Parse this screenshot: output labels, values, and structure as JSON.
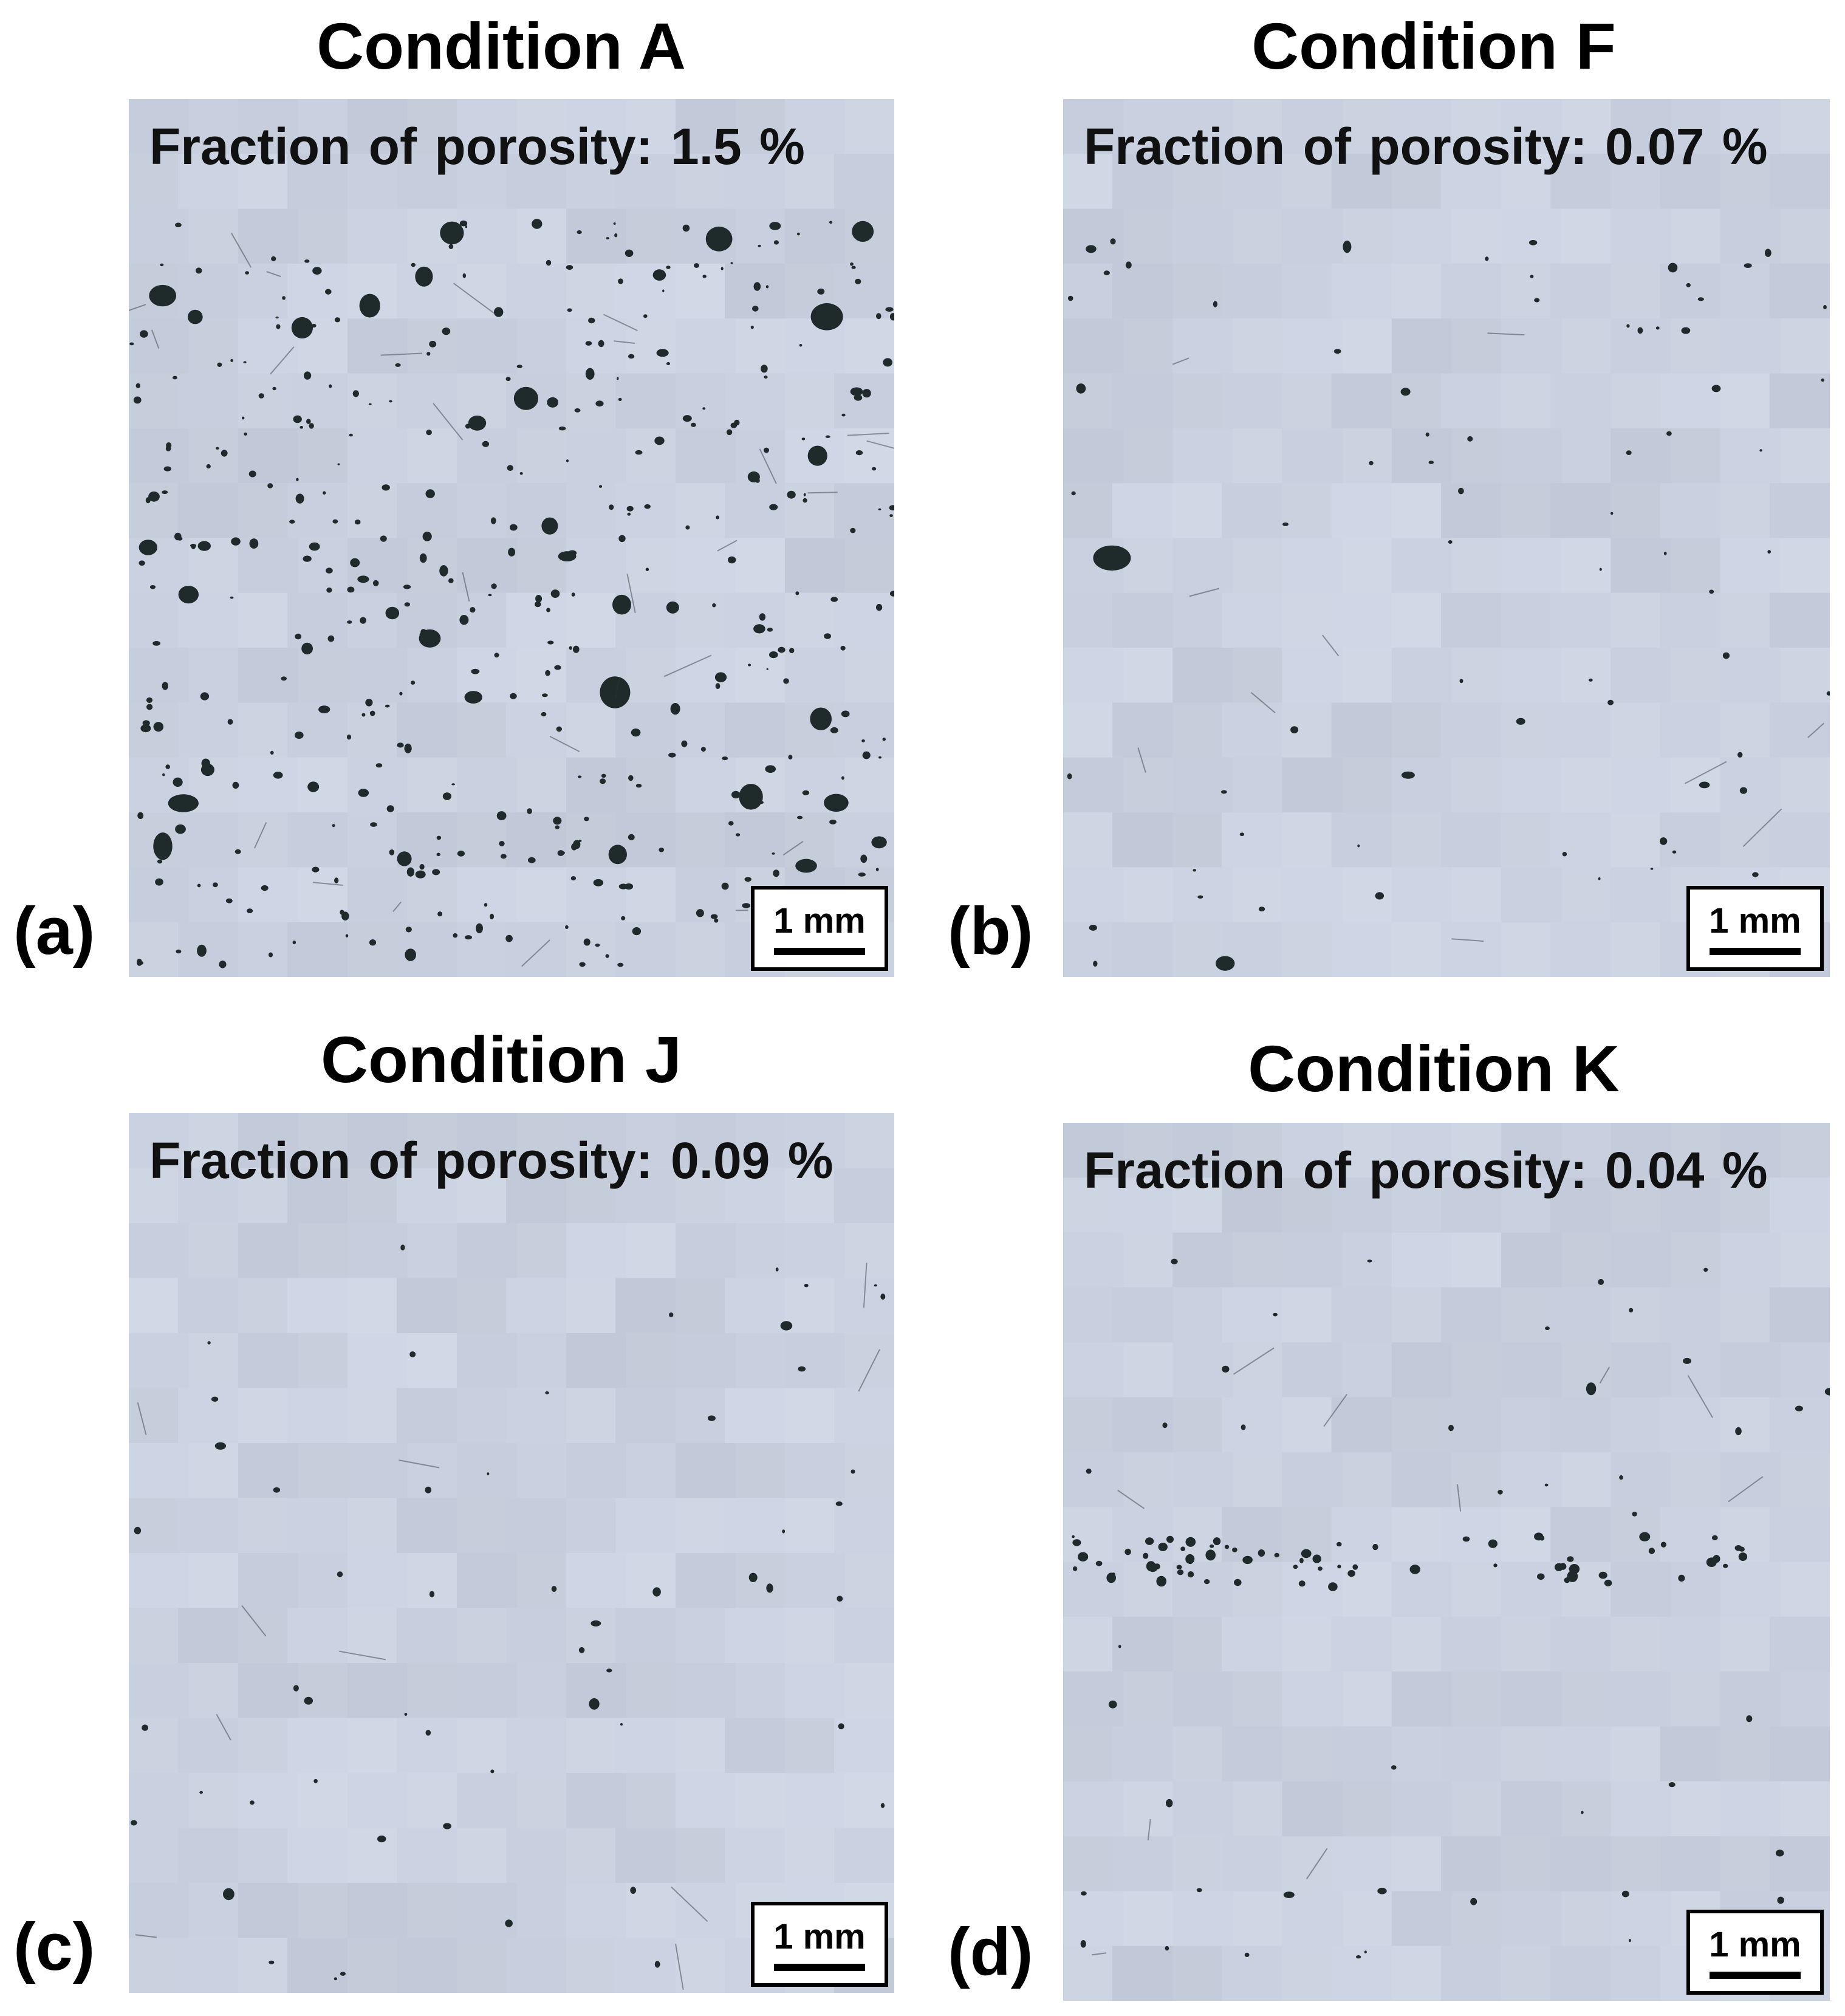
{
  "panels": [
    {
      "id": "a",
      "title": "Condition A",
      "letter": "(a)",
      "porosity_text": "Fraction of porosity:  1.5 %",
      "scale_bar": "1 mm"
    },
    {
      "id": "b",
      "title": "Condition F",
      "letter": "(b)",
      "porosity_text": "Fraction of porosity:  0.07 %",
      "scale_bar": "1 mm"
    },
    {
      "id": "c",
      "title": "Condition J",
      "letter": "(c)",
      "porosity_text": "Fraction of porosity:  0.09 %",
      "scale_bar": "1 mm"
    },
    {
      "id": "d",
      "title": "Condition K",
      "letter": "(d)",
      "porosity_text": "Fraction of porosity:  0.04 %",
      "scale_bar": "1 mm"
    }
  ],
  "colors": {
    "background": "#c9d1df",
    "pore": "#1f2b2b"
  }
}
